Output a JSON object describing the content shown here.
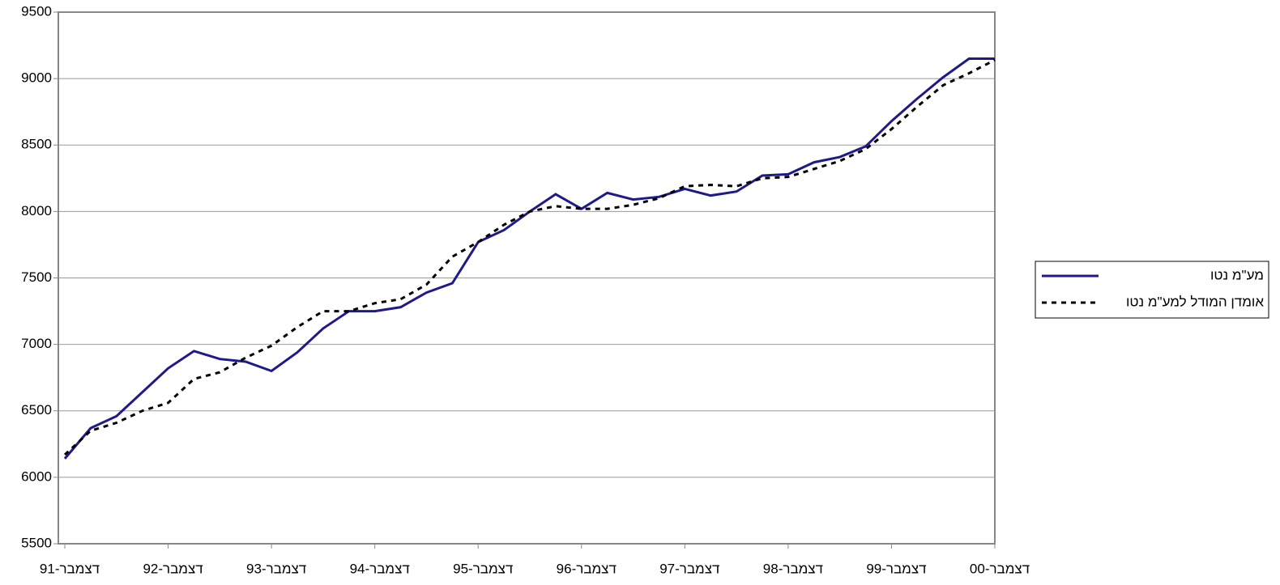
{
  "chart_data": {
    "type": "line",
    "categories": [
      "דצמבר-91",
      null,
      null,
      null,
      "דצמבר-92",
      null,
      null,
      null,
      "דצמבר-93",
      null,
      null,
      null,
      "דצמבר-94",
      null,
      null,
      null,
      "דצמבר-95",
      null,
      null,
      null,
      "דצמבר-96",
      null,
      null,
      null,
      "דצמבר-97",
      null,
      null,
      null,
      "דצמבר-98",
      null,
      null,
      null,
      "דצמבר-99",
      null,
      null,
      null,
      "דצמבר-00"
    ],
    "series": [
      {
        "name": "מע\"מ נטו",
        "color": "#1f1a8c",
        "dash": false,
        "values": [
          6140,
          6370,
          6460,
          6640,
          6820,
          6950,
          6890,
          6870,
          6800,
          6940,
          7120,
          7250,
          7250,
          7280,
          7390,
          7460,
          7770,
          7860,
          8000,
          8130,
          8020,
          8140,
          8090,
          8110,
          8170,
          8120,
          8150,
          8270,
          8280,
          8370,
          8410,
          8490,
          8680,
          8850,
          9010,
          9150,
          9150
        ]
      },
      {
        "name": "אומדן המודל למע\"מ נטו",
        "color": "#000000",
        "dash": true,
        "values": [
          6170,
          6350,
          6410,
          6500,
          6560,
          6740,
          6790,
          6900,
          6990,
          7130,
          7250,
          7250,
          7310,
          7340,
          7450,
          7660,
          7770,
          7900,
          8000,
          8040,
          8020,
          8020,
          8050,
          8100,
          8190,
          8200,
          8190,
          8250,
          8260,
          8320,
          8380,
          8470,
          8620,
          8790,
          8950,
          9040,
          9140
        ]
      }
    ],
    "ylim": [
      5500,
      9500
    ],
    "yticks": [
      5500,
      6000,
      6500,
      7000,
      7500,
      8000,
      8500,
      9000,
      9500
    ],
    "grid": true,
    "legend": "right"
  }
}
